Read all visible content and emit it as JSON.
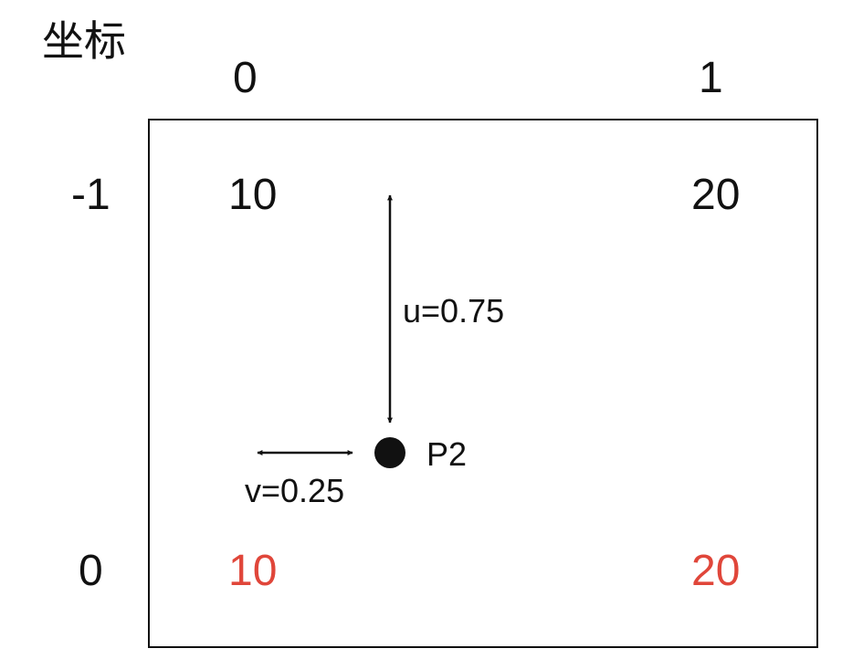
{
  "title": "坐标",
  "axis": {
    "col_labels": [
      "0",
      "1"
    ],
    "row_labels": [
      "-1",
      "0"
    ]
  },
  "grid_values": {
    "top_left": "10",
    "top_right": "20",
    "bottom_left": "10",
    "bottom_right": "20"
  },
  "annotations": {
    "u_label": "u=0.75",
    "v_label": "v=0.25",
    "point_label": "P2"
  },
  "colors": {
    "text": "#111111",
    "highlight": "#e0463a",
    "frame": "#111111"
  }
}
